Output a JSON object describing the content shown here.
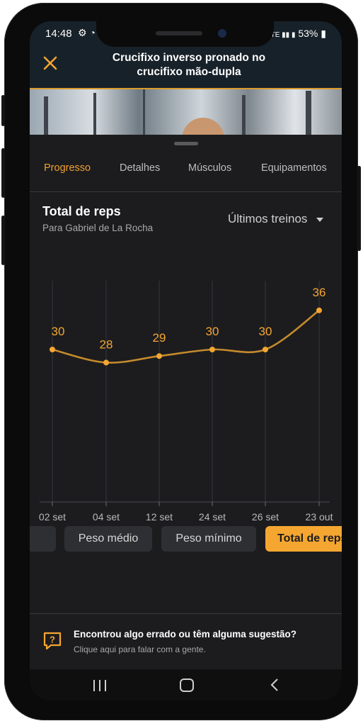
{
  "status": {
    "time": "14:48",
    "battery": "53%",
    "left_icons": "⚙ ◔",
    "signal": "VoLTE ▮▮ ▮"
  },
  "header": {
    "title_line1": "Crucifixo inverso pronado no",
    "title_line2": "crucifixo mão-dupla",
    "close_icon": "close-icon"
  },
  "tabs": [
    {
      "label": "Progresso",
      "active": true
    },
    {
      "label": "Detalhes",
      "active": false
    },
    {
      "label": "Músculos",
      "active": false
    },
    {
      "label": "Equipamentos",
      "active": false
    }
  ],
  "card": {
    "title": "Total de reps",
    "subtitle": "Para Gabriel de La Rocha",
    "filter_label": "Últimos treinos"
  },
  "chart_data": {
    "type": "line",
    "categories": [
      "02 set",
      "04 set",
      "12 set",
      "24 set",
      "26 set",
      "23 out"
    ],
    "values": [
      30,
      28,
      29,
      30,
      30,
      36
    ],
    "data_labels": [
      "30",
      "28",
      "29",
      "30",
      "30",
      "36"
    ],
    "series_color": "#f5a631",
    "grid": "vertical"
  },
  "chips": [
    {
      "label": "",
      "active": false
    },
    {
      "label": "Peso médio",
      "active": false
    },
    {
      "label": "Peso mínimo",
      "active": false
    },
    {
      "label": "Total de reps",
      "active": true
    }
  ],
  "feedback": {
    "title": "Encontrou algo errado ou têm alguma sugestão?",
    "subtitle": "Clique aqui para falar com a gente."
  },
  "navbar": {
    "icons": [
      "recent-apps-icon",
      "home-icon",
      "back-icon"
    ]
  },
  "colors": {
    "accent": "#f5a631",
    "header_bg": "#172129",
    "surface": "#1c1c1e"
  }
}
